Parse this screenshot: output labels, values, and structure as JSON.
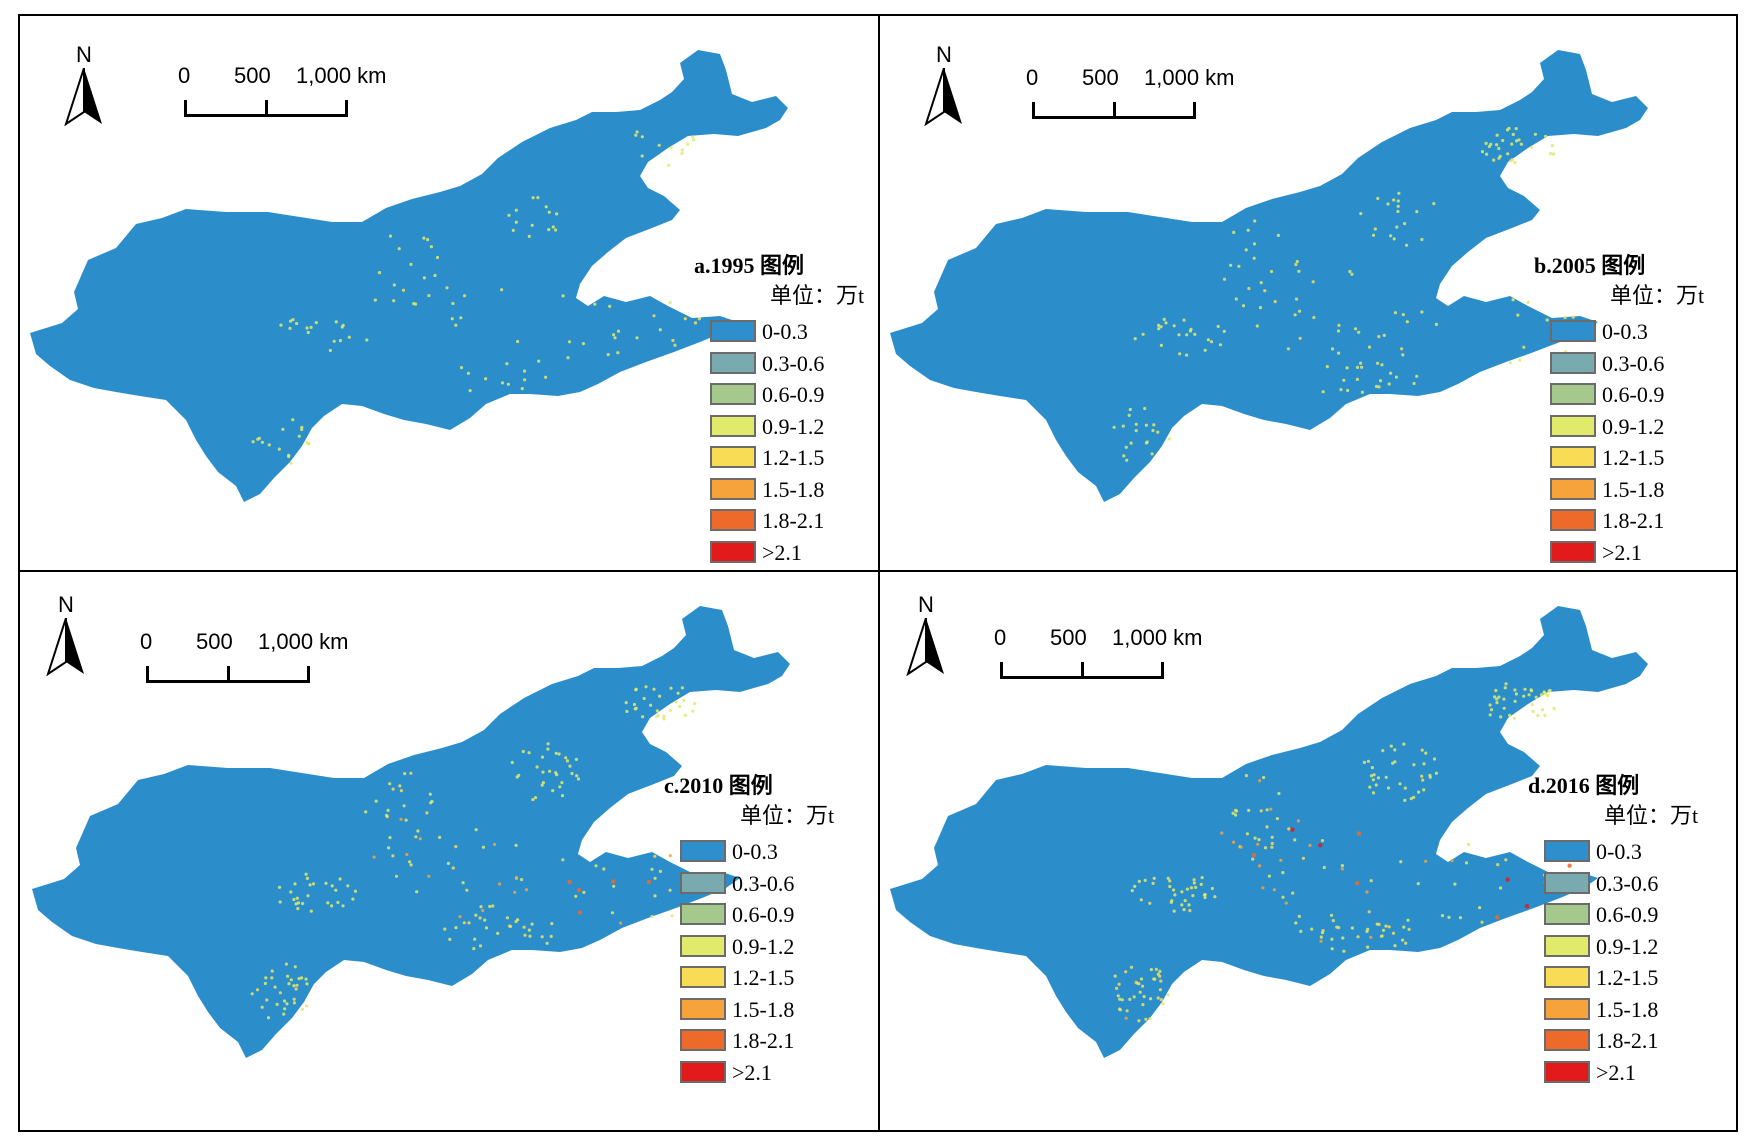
{
  "colors": {
    "land": "#2b8ecb",
    "classes": [
      "#2f8fcc",
      "#78aab0",
      "#a5c88d",
      "#e1ea6a",
      "#f8dc56",
      "#f6a33b",
      "#ee6a2a",
      "#e21a1c"
    ]
  },
  "scale": {
    "labels": [
      "0",
      "500",
      "1,000 km"
    ]
  },
  "north_label": "N",
  "legend": {
    "unit": "单位：万t",
    "classes": [
      "0-0.3",
      "0.3-0.6",
      "0.6-0.9",
      "0.9-1.2",
      "1.2-1.5",
      "1.5-1.8",
      "1.8-2.1",
      ">2.1"
    ]
  },
  "panels": [
    {
      "title": "a.1995 图例",
      "intensity": 0.45
    },
    {
      "title": "b.2005 图例",
      "intensity": 0.65
    },
    {
      "title": "c.2010 图例",
      "intensity": 0.85
    },
    {
      "title": "d.2016 图例",
      "intensity": 1.0
    }
  ]
}
